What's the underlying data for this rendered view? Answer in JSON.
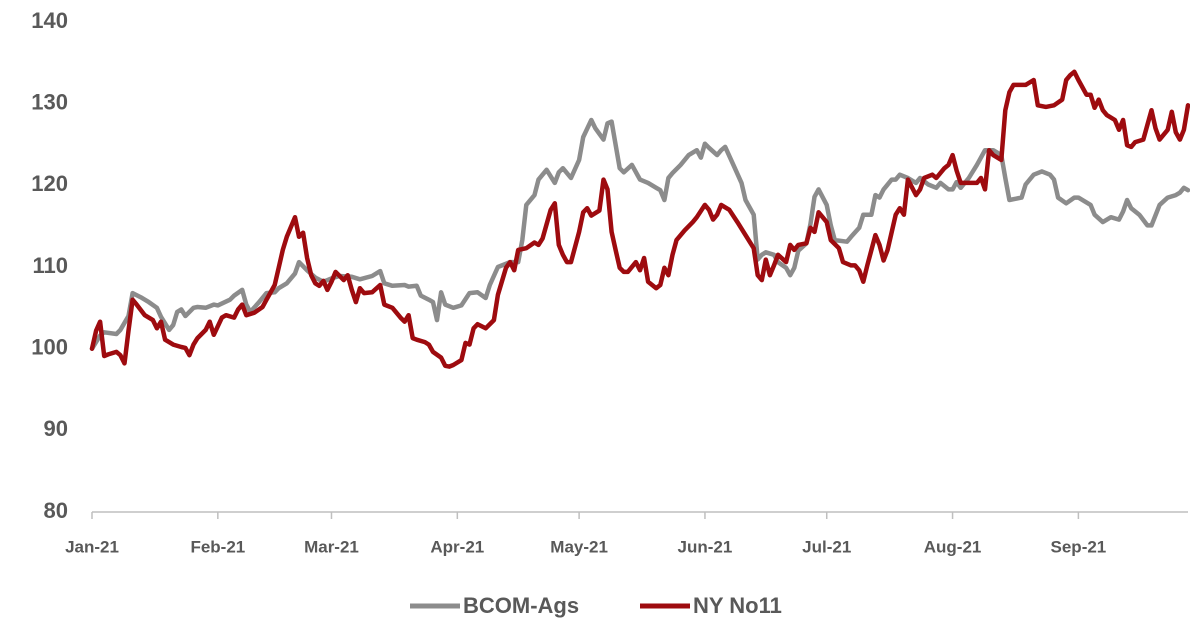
{
  "chart_data": {
    "type": "line",
    "xlim": [
      0,
      270
    ],
    "xticks": [
      {
        "value": 0,
        "label": "Jan-21"
      },
      {
        "value": 31,
        "label": "Feb-21"
      },
      {
        "value": 59,
        "label": "Mar-21"
      },
      {
        "value": 90,
        "label": "Apr-21"
      },
      {
        "value": 120,
        "label": "May-21"
      },
      {
        "value": 151,
        "label": "Jun-21"
      },
      {
        "value": 181,
        "label": "Jul-21"
      },
      {
        "value": 212,
        "label": "Aug-21"
      },
      {
        "value": 243,
        "label": "Sep-21"
      }
    ],
    "ylim": [
      80,
      140
    ],
    "yticks": [
      80,
      90,
      100,
      110,
      120,
      130,
      140
    ],
    "grid": false,
    "legend": "bottom",
    "series": [
      {
        "name": "BCOM-Ags",
        "color": "#8c8c8c",
        "x": [
          0,
          2,
          3,
          6,
          7,
          9,
          10,
          12,
          14,
          16,
          17,
          19,
          20,
          21,
          22,
          23,
          25,
          26,
          28,
          30,
          31,
          34,
          35,
          37,
          38,
          39,
          41,
          43,
          45,
          46,
          48,
          50,
          51,
          53,
          55,
          57,
          59,
          61,
          64,
          66,
          69,
          71,
          72,
          74,
          77,
          78,
          80,
          81,
          83,
          84,
          85,
          86,
          87,
          89,
          91,
          93,
          95,
          97,
          98,
          100,
          103,
          105,
          106,
          107,
          109,
          110,
          112,
          114,
          115,
          116,
          118,
          120,
          121,
          123,
          124,
          126,
          127,
          128,
          130,
          131,
          133,
          135,
          137,
          139,
          140,
          141,
          142,
          143,
          145,
          147,
          149,
          150,
          151,
          152,
          154,
          155,
          156,
          158,
          160,
          161,
          163,
          164,
          165,
          166,
          168,
          169,
          171,
          172,
          173,
          174,
          176,
          177,
          178,
          179,
          181,
          182,
          183,
          186,
          187,
          189,
          190,
          192,
          193,
          194,
          195,
          197,
          198,
          199,
          201,
          203,
          204,
          206,
          208,
          209,
          211,
          212,
          213,
          214,
          216,
          218,
          220,
          222,
          224,
          225,
          226,
          229,
          230,
          232,
          234,
          236,
          237,
          238,
          240,
          242,
          243,
          246,
          247,
          249,
          251,
          253,
          254,
          255,
          256,
          258,
          260,
          261,
          263,
          265,
          267,
          268,
          269,
          270
        ],
        "values": [
          100,
          101.6,
          102,
          101.8,
          102.3,
          104,
          106.8,
          106.3,
          105.7,
          105,
          103.9,
          102.3,
          102.9,
          104.5,
          104.8,
          104,
          105,
          105.1,
          105,
          105.4,
          105.3,
          106,
          106.5,
          107.2,
          105.4,
          104.5,
          105.6,
          106.8,
          106.9,
          107.4,
          108,
          109.2,
          110.6,
          109.6,
          108.7,
          108.2,
          108.6,
          108.9,
          108.8,
          108.5,
          108.9,
          109.5,
          108,
          107.7,
          107.8,
          107.6,
          107.7,
          106.5,
          106,
          105.7,
          103.5,
          106.9,
          105.4,
          105,
          105.3,
          106.8,
          106.9,
          106.2,
          107.8,
          110,
          110.6,
          110.6,
          113.3,
          117.6,
          118.8,
          120.7,
          121.9,
          120.3,
          121.6,
          122.1,
          120.9,
          123.1,
          125.9,
          128,
          127,
          125.6,
          127.6,
          127.8,
          122.1,
          121.6,
          122.5,
          120.7,
          120.3,
          119.7,
          119.4,
          118.2,
          120.9,
          121.5,
          122.5,
          123.7,
          124.3,
          123.4,
          125.1,
          124.6,
          123.7,
          124.3,
          124.7,
          122.5,
          120.3,
          118.2,
          116.4,
          110.9,
          111.5,
          111.8,
          111.5,
          110.6,
          109.9,
          109,
          109.9,
          112,
          112.9,
          115.3,
          118.6,
          119.5,
          117.6,
          115.1,
          113.3,
          113.1,
          113.7,
          114.8,
          116.4,
          116.4,
          118.8,
          118.5,
          119.5,
          120.7,
          120.7,
          121.3,
          120.9,
          120.3,
          120.9,
          120.1,
          119.7,
          120.3,
          119.5,
          119.5,
          120.4,
          119.7,
          120.9,
          122.5,
          124.3,
          124.3,
          123.7,
          120.9,
          118.2,
          118.5,
          120.1,
          121.3,
          121.7,
          121.3,
          120.7,
          118.5,
          117.8,
          118.5,
          118.5,
          117.6,
          116.4,
          115.5,
          116.1,
          115.8,
          116.8,
          118.2,
          117.2,
          116.4,
          115.1,
          115.1,
          117.6,
          118.5,
          118.8,
          119.1,
          119.7,
          119.4
        ]
      },
      {
        "name": "NY No11",
        "color": "#9e0b0f",
        "x": [
          0,
          1,
          2,
          3,
          4,
          6,
          7,
          8,
          9,
          10,
          11,
          13,
          15,
          16,
          17,
          18,
          20,
          22,
          23,
          24,
          25,
          26,
          28,
          29,
          30,
          32,
          33,
          35,
          36,
          37,
          38,
          40,
          42,
          43,
          45,
          46,
          47,
          48,
          50,
          51,
          52,
          53,
          54,
          55,
          56,
          57,
          58,
          59,
          60,
          62,
          63,
          64,
          65,
          66,
          67,
          69,
          71,
          72,
          74,
          76,
          77,
          78,
          79,
          80,
          82,
          83,
          84,
          86,
          87,
          88,
          89,
          91,
          92,
          93,
          94,
          95,
          97,
          99,
          100,
          102,
          103,
          104,
          105,
          107,
          109,
          110,
          111,
          113,
          114,
          115,
          116,
          117,
          118,
          120,
          121,
          122,
          123,
          125,
          126,
          127,
          128,
          129,
          130,
          131,
          132,
          134,
          135,
          136,
          137,
          139,
          140,
          141,
          142,
          143,
          144,
          146,
          148,
          149,
          151,
          152,
          153,
          154,
          155,
          157,
          159,
          161,
          163,
          164,
          165,
          166,
          167,
          168,
          169,
          171,
          172,
          173,
          174,
          176,
          177,
          178,
          179,
          181,
          182,
          184,
          185,
          187,
          188,
          189,
          190,
          191,
          193,
          194,
          195,
          196,
          198,
          199,
          200,
          201,
          203,
          204,
          205,
          207,
          208,
          210,
          211,
          212,
          213,
          214,
          216,
          218,
          219,
          220,
          221,
          222,
          224,
          225,
          226,
          227,
          230,
          232,
          233,
          235,
          237,
          239,
          240,
          241,
          242,
          243,
          245,
          246,
          247,
          248,
          249,
          250,
          252,
          253,
          254,
          255,
          256,
          257,
          259,
          260,
          261,
          262,
          263,
          265,
          266,
          267,
          268,
          269,
          270
        ],
        "values": [
          100,
          102.2,
          103.3,
          99.1,
          99.3,
          99.6,
          99.2,
          98.2,
          102.2,
          106,
          105.4,
          104.1,
          103.5,
          102.5,
          103.3,
          101.1,
          100.5,
          100.2,
          100.1,
          99.2,
          100.5,
          101.3,
          102.3,
          103.3,
          101.7,
          103.8,
          104.1,
          103.8,
          104.8,
          105.4,
          104.1,
          104.4,
          105.1,
          106,
          107.8,
          109.9,
          112.1,
          113.7,
          116.1,
          113.7,
          114.2,
          111.1,
          109,
          108,
          107.7,
          108.3,
          107.2,
          108.2,
          109.4,
          108.4,
          109,
          107.2,
          105.7,
          107.4,
          106.8,
          106.9,
          107.8,
          105.4,
          105,
          103.8,
          103.3,
          104.1,
          101.3,
          101.1,
          100.8,
          100.5,
          99.6,
          98.9,
          97.9,
          97.8,
          98,
          98.6,
          100.7,
          100.5,
          102.5,
          103,
          102.5,
          103.5,
          106.6,
          109.9,
          110.6,
          109.6,
          112.1,
          112.3,
          113,
          112.7,
          113.5,
          117,
          117.8,
          112.7,
          111.5,
          110.6,
          110.6,
          114.3,
          116.7,
          117.2,
          116.3,
          116.9,
          120.7,
          119.5,
          114.3,
          112.1,
          109.9,
          109.4,
          109.4,
          110.6,
          109.6,
          111.1,
          108.2,
          107.4,
          107.8,
          109.9,
          109,
          111.5,
          113.3,
          114.5,
          115.5,
          116.1,
          117.6,
          117,
          115.8,
          116.4,
          117.6,
          117,
          115.5,
          113.9,
          112.3,
          109,
          108.4,
          110.9,
          109,
          110.2,
          111.5,
          110.6,
          112.7,
          112.1,
          112.7,
          112.9,
          114.8,
          114.3,
          116.7,
          115.5,
          113.3,
          112.3,
          110.6,
          110.2,
          110.2,
          109.6,
          108.2,
          110.2,
          113.9,
          112.7,
          110.8,
          112.1,
          116.4,
          117.2,
          116.4,
          120.7,
          118.8,
          119.5,
          120.9,
          121.3,
          120.9,
          122.1,
          122.5,
          123.7,
          121.8,
          120.3,
          120.3,
          120.3,
          120.9,
          119.5,
          124.3,
          123.7,
          123.1,
          129.2,
          131.4,
          132.3,
          132.3,
          132.9,
          129.8,
          129.6,
          129.8,
          130.5,
          132.9,
          133.5,
          133.9,
          132.9,
          131.1,
          131.1,
          129.5,
          130.5,
          129.2,
          128.6,
          128,
          126.8,
          128,
          124.9,
          124.7,
          125.3,
          125.6,
          127.4,
          129.2,
          127,
          125.6,
          126.8,
          129,
          126.5,
          125.6,
          126.8,
          129.8
        ]
      }
    ]
  }
}
